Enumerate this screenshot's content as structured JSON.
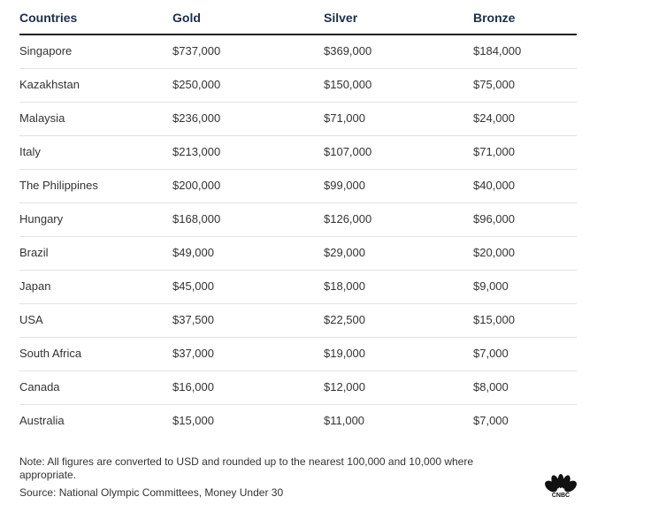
{
  "table": {
    "header": [
      "Countries",
      "Gold",
      "Silver",
      "Bronze"
    ],
    "rows": [
      [
        "Singapore",
        "$737,000",
        "$369,000",
        "$184,000"
      ],
      [
        "Kazakhstan",
        "$250,000",
        "$150,000",
        "$75,000"
      ],
      [
        "Malaysia",
        "$236,000",
        "$71,000",
        "$24,000"
      ],
      [
        "Italy",
        "$213,000",
        "$107,000",
        "$71,000"
      ],
      [
        "The Philippines",
        "$200,000",
        "$99,000",
        "$40,000"
      ],
      [
        "Hungary",
        "$168,000",
        "$126,000",
        "$96,000"
      ],
      [
        "Brazil",
        "$49,000",
        "$29,000",
        "$20,000"
      ],
      [
        "Japan",
        "$45,000",
        "$18,000",
        "$9,000"
      ],
      [
        "USA",
        "$37,500",
        "$22,500",
        "$15,000"
      ],
      [
        "South Africa",
        "$37,000",
        "$19,000",
        "$7,000"
      ],
      [
        "Canada",
        "$16,000",
        "$12,000",
        "$8,000"
      ],
      [
        "Australia",
        "$15,000",
        "$11,000",
        "$7,000"
      ]
    ]
  },
  "note": "Note: All figures are converted to USD and rounded up to the nearest 100,000 and 10,000 where appropriate.",
  "source": "Source: National Olympic Committees, Money Under 30",
  "logo": "CNBC"
}
